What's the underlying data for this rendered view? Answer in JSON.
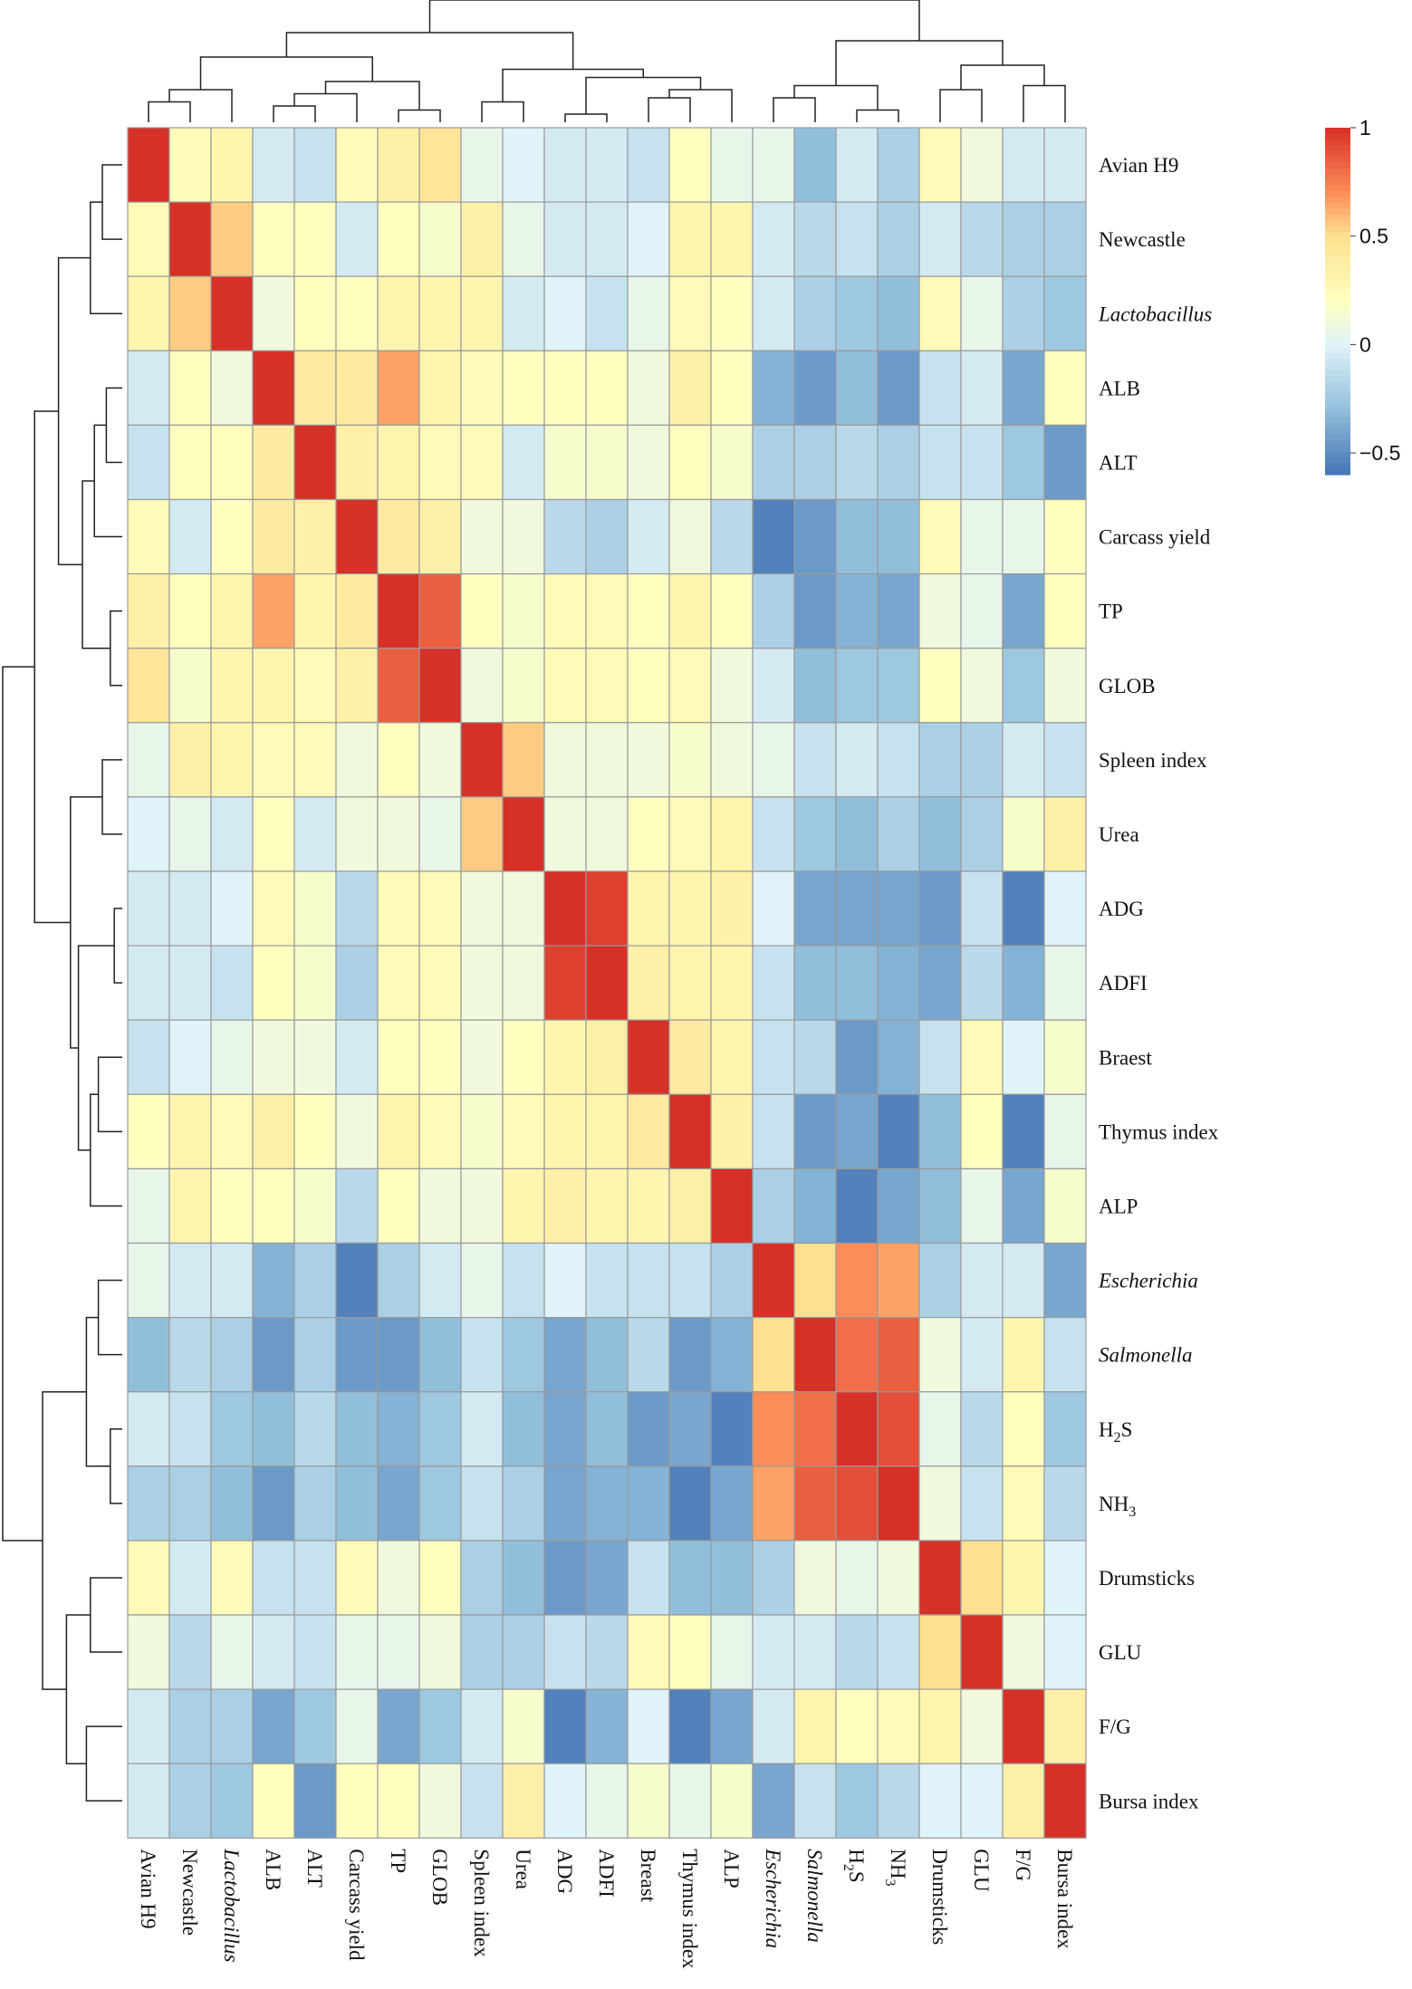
{
  "chart_data": {
    "type": "heatmap",
    "title": "",
    "row_labels": [
      "Avian H9",
      "Newcastle",
      "Lactobacillus",
      "ALB",
      "ALT",
      "Carcass yield",
      "TP",
      "GLOB",
      "Spleen index",
      "Urea",
      "ADG",
      "ADFI",
      "Braest",
      "Thymus index",
      "ALP",
      "Escherichia",
      "Salmonella",
      "H2S",
      "NH3",
      "Drumsticks",
      "GLU",
      "F/G",
      "Bursa index"
    ],
    "col_labels": [
      "Avian H9",
      "Newcastle",
      "Lactobacillus",
      "ALB",
      "ALT",
      "Carcass yield",
      "TP",
      "GLOB",
      "Spleen index",
      "Urea",
      "ADG",
      "ADFI",
      "Breast",
      "Thymus index",
      "ALP",
      "Escherichia",
      "Salmonella",
      "H2S",
      "NH3",
      "Drumsticks",
      "GLU",
      "F/G",
      "Bursa index"
    ],
    "italic_labels": [
      "Lactobacillus",
      "Escherichia",
      "Salmonella"
    ],
    "subscript_labels": {
      "H2S": [
        "H",
        "2",
        "S"
      ],
      "NH3": [
        "NH",
        "3",
        ""
      ]
    },
    "col_subscript_labels": {},
    "values": [
      [
        1.0,
        0.25,
        0.3,
        -0.05,
        -0.1,
        0.25,
        0.35,
        0.45,
        0.05,
        0.0,
        -0.05,
        -0.05,
        -0.1,
        0.2,
        0.05,
        0.05,
        -0.3,
        -0.05,
        -0.2,
        0.25,
        0.1,
        -0.05,
        -0.05
      ],
      [
        0.25,
        1.0,
        0.55,
        0.2,
        0.2,
        -0.05,
        0.2,
        0.15,
        0.35,
        0.05,
        -0.05,
        -0.05,
        0.0,
        0.3,
        0.3,
        -0.05,
        -0.15,
        -0.1,
        -0.2,
        -0.05,
        -0.15,
        -0.2,
        -0.2
      ],
      [
        0.3,
        0.55,
        1.0,
        0.1,
        0.2,
        0.2,
        0.3,
        0.3,
        0.3,
        -0.05,
        0.0,
        -0.1,
        0.05,
        0.25,
        0.2,
        -0.05,
        -0.2,
        -0.25,
        -0.3,
        0.25,
        0.05,
        -0.2,
        -0.25
      ],
      [
        -0.05,
        0.2,
        0.1,
        1.0,
        0.4,
        0.4,
        0.65,
        0.3,
        0.25,
        0.2,
        0.2,
        0.2,
        0.1,
        0.35,
        0.2,
        -0.35,
        -0.45,
        -0.3,
        -0.45,
        -0.1,
        -0.05,
        -0.4,
        0.2
      ],
      [
        -0.1,
        0.2,
        0.2,
        0.4,
        1.0,
        0.35,
        0.3,
        0.25,
        0.25,
        -0.05,
        0.15,
        0.15,
        0.1,
        0.2,
        0.15,
        -0.2,
        -0.2,
        -0.15,
        -0.2,
        -0.1,
        -0.1,
        -0.25,
        -0.45
      ],
      [
        0.25,
        -0.05,
        0.2,
        0.4,
        0.35,
        1.0,
        0.4,
        0.35,
        0.1,
        0.1,
        -0.15,
        -0.2,
        -0.05,
        0.1,
        -0.15,
        -0.55,
        -0.45,
        -0.3,
        -0.3,
        0.25,
        0.05,
        0.05,
        0.2
      ],
      [
        0.35,
        0.2,
        0.3,
        0.65,
        0.3,
        0.4,
        1.0,
        0.85,
        0.2,
        0.15,
        0.25,
        0.25,
        0.2,
        0.3,
        0.2,
        -0.2,
        -0.45,
        -0.35,
        -0.4,
        0.1,
        0.05,
        -0.4,
        0.2
      ],
      [
        0.45,
        0.15,
        0.3,
        0.3,
        0.25,
        0.35,
        0.85,
        1.0,
        0.1,
        0.15,
        0.25,
        0.25,
        0.2,
        0.25,
        0.1,
        -0.05,
        -0.3,
        -0.25,
        -0.25,
        0.2,
        0.1,
        -0.25,
        0.1
      ],
      [
        0.05,
        0.35,
        0.3,
        0.25,
        0.25,
        0.1,
        0.2,
        0.1,
        1.0,
        0.55,
        0.1,
        0.1,
        0.1,
        0.15,
        0.1,
        0.05,
        -0.1,
        -0.05,
        -0.1,
        -0.2,
        -0.2,
        -0.05,
        -0.1
      ],
      [
        0.0,
        0.05,
        -0.05,
        0.2,
        -0.05,
        0.1,
        0.1,
        0.05,
        0.55,
        1.0,
        0.1,
        0.1,
        0.2,
        0.25,
        0.3,
        -0.1,
        -0.25,
        -0.3,
        -0.2,
        -0.3,
        -0.2,
        0.15,
        0.35
      ],
      [
        -0.05,
        -0.05,
        0.0,
        0.25,
        0.15,
        -0.15,
        0.25,
        0.25,
        0.1,
        0.1,
        1.0,
        0.95,
        0.3,
        0.3,
        0.35,
        0.0,
        -0.4,
        -0.4,
        -0.4,
        -0.45,
        -0.1,
        -0.55,
        0.0
      ],
      [
        -0.05,
        -0.05,
        -0.1,
        0.2,
        0.15,
        -0.2,
        0.25,
        0.25,
        0.1,
        0.1,
        0.95,
        1.0,
        0.35,
        0.3,
        0.3,
        -0.1,
        -0.3,
        -0.3,
        -0.35,
        -0.4,
        -0.15,
        -0.35,
        0.05
      ],
      [
        -0.1,
        0.0,
        0.05,
        0.1,
        0.1,
        -0.05,
        0.2,
        0.2,
        0.1,
        0.2,
        0.3,
        0.35,
        1.0,
        0.4,
        0.3,
        -0.1,
        -0.15,
        -0.45,
        -0.35,
        -0.1,
        0.25,
        0.0,
        0.15
      ],
      [
        0.2,
        0.3,
        0.25,
        0.35,
        0.2,
        0.1,
        0.3,
        0.25,
        0.15,
        0.25,
        0.3,
        0.3,
        0.4,
        1.0,
        0.35,
        -0.1,
        -0.45,
        -0.4,
        -0.55,
        -0.3,
        0.2,
        -0.55,
        0.05
      ],
      [
        0.05,
        0.3,
        0.2,
        0.2,
        0.15,
        -0.15,
        0.2,
        0.1,
        0.1,
        0.3,
        0.35,
        0.3,
        0.3,
        0.35,
        1.0,
        -0.2,
        -0.35,
        -0.55,
        -0.4,
        -0.3,
        0.05,
        -0.4,
        0.15
      ],
      [
        0.05,
        -0.05,
        -0.05,
        -0.35,
        -0.2,
        -0.55,
        -0.2,
        -0.05,
        0.05,
        -0.1,
        0.0,
        -0.1,
        -0.1,
        -0.1,
        -0.2,
        1.0,
        0.5,
        0.7,
        0.65,
        -0.2,
        -0.05,
        -0.05,
        -0.4
      ],
      [
        -0.3,
        -0.15,
        -0.2,
        -0.45,
        -0.2,
        -0.45,
        -0.45,
        -0.3,
        -0.1,
        -0.25,
        -0.4,
        -0.3,
        -0.15,
        -0.45,
        -0.35,
        0.5,
        1.0,
        0.8,
        0.85,
        0.1,
        -0.05,
        0.3,
        -0.1
      ],
      [
        -0.05,
        -0.1,
        -0.25,
        -0.3,
        -0.15,
        -0.3,
        -0.35,
        -0.25,
        -0.05,
        -0.3,
        -0.4,
        -0.3,
        -0.45,
        -0.4,
        -0.55,
        0.7,
        0.8,
        1.0,
        0.9,
        0.05,
        -0.15,
        0.2,
        -0.25
      ],
      [
        -0.2,
        -0.2,
        -0.3,
        -0.45,
        -0.2,
        -0.3,
        -0.4,
        -0.25,
        -0.1,
        -0.2,
        -0.4,
        -0.35,
        -0.35,
        -0.55,
        -0.4,
        0.65,
        0.85,
        0.9,
        1.0,
        0.1,
        -0.1,
        0.25,
        -0.15
      ],
      [
        0.25,
        -0.05,
        0.25,
        -0.1,
        -0.1,
        0.25,
        0.1,
        0.2,
        -0.2,
        -0.3,
        -0.45,
        -0.4,
        -0.1,
        -0.3,
        -0.3,
        -0.2,
        0.1,
        0.05,
        0.1,
        1.0,
        0.5,
        0.3,
        0.0
      ],
      [
        0.1,
        -0.15,
        0.05,
        -0.05,
        -0.1,
        0.05,
        0.05,
        0.1,
        -0.2,
        -0.2,
        -0.1,
        -0.15,
        0.25,
        0.2,
        0.05,
        -0.05,
        -0.05,
        -0.15,
        -0.1,
        0.5,
        1.0,
        0.1,
        0.0
      ],
      [
        -0.05,
        -0.2,
        -0.2,
        -0.4,
        -0.25,
        0.05,
        -0.4,
        -0.25,
        -0.05,
        0.15,
        -0.55,
        -0.35,
        0.0,
        -0.55,
        -0.4,
        -0.05,
        0.3,
        0.2,
        0.25,
        0.3,
        0.1,
        1.0,
        0.35
      ],
      [
        -0.05,
        -0.2,
        -0.25,
        0.2,
        -0.45,
        0.2,
        0.2,
        0.1,
        -0.1,
        0.35,
        0.0,
        0.05,
        0.15,
        0.05,
        0.15,
        -0.4,
        -0.1,
        -0.25,
        -0.15,
        0.0,
        0.0,
        0.35,
        1.0
      ]
    ],
    "color_scale": {
      "stops": [
        {
          "value": -0.6,
          "color": "#4575b4"
        },
        {
          "value": -0.3,
          "color": "#91bfdb"
        },
        {
          "value": 0.0,
          "color": "#e0f3f8"
        },
        {
          "value": 0.2,
          "color": "#ffffbf"
        },
        {
          "value": 0.5,
          "color": "#fee090"
        },
        {
          "value": 0.7,
          "color": "#fc8d59"
        },
        {
          "value": 1.0,
          "color": "#d73027"
        }
      ],
      "ticks": [
        {
          "value": 1,
          "label": "1"
        },
        {
          "value": 0.5,
          "label": "0.5"
        },
        {
          "value": 0,
          "label": "0"
        },
        {
          "value": -0.5,
          "label": "−0.5"
        }
      ],
      "range": [
        -0.6,
        1.0
      ]
    },
    "row_dendrogram": true,
    "col_dendrogram": true,
    "legend_position": "top-right"
  }
}
